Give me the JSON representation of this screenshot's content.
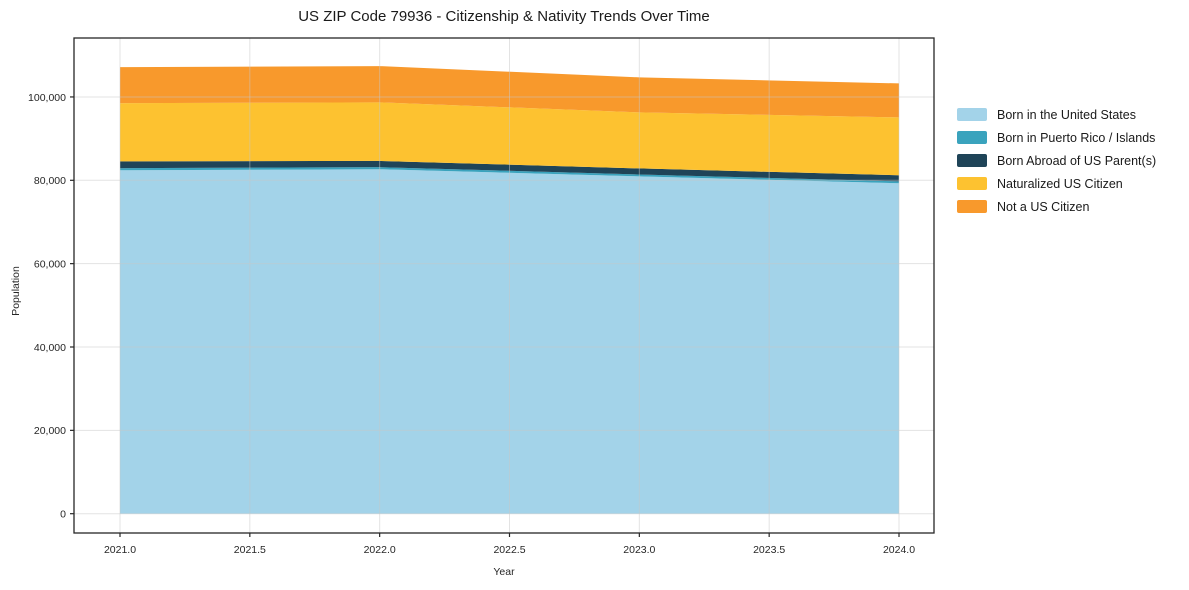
{
  "chart_data": {
    "type": "area",
    "stacked": true,
    "title": "US ZIP Code 79936 - Citizenship & Nativity Trends Over Time",
    "xlabel": "Year",
    "ylabel": "Population",
    "grid": true,
    "legend_position": "right-outside",
    "background_color": "#ffffff",
    "x": [
      2021,
      2022,
      2023,
      2024
    ],
    "x_tick_values": [
      2021.0,
      2021.5,
      2022.0,
      2022.5,
      2023.0,
      2023.5,
      2024.0
    ],
    "x_tick_labels": [
      "2021.0",
      "2021.5",
      "2022.0",
      "2022.5",
      "2023.0",
      "2023.5",
      "2024.0"
    ],
    "y_tick_values": [
      0,
      20000,
      40000,
      60000,
      80000,
      100000
    ],
    "y_tick_labels": [
      "0",
      "20,000",
      "40,000",
      "60,000",
      "80,000",
      "100,000"
    ],
    "xlim": [
      2020.85,
      2024.15
    ],
    "ylim": [
      -5000,
      114000
    ],
    "series": [
      {
        "name": "Born in the United States",
        "color": "#a3d3e9",
        "values": [
          82400,
          82650,
          80950,
          79300
        ]
      },
      {
        "name": "Born in Puerto Rico / Islands",
        "color": "#3aa3bd",
        "values": [
          500,
          500,
          450,
          450
        ]
      },
      {
        "name": "Born Abroad of US Parent(s)",
        "color": "#1f4458",
        "values": [
          1650,
          1500,
          1450,
          1450
        ]
      },
      {
        "name": "Naturalized US Citizen",
        "color": "#fdc230",
        "values": [
          13950,
          14050,
          13450,
          13900
        ]
      },
      {
        "name": "Not a US Citizen",
        "color": "#f8992c",
        "values": [
          8650,
          8700,
          8400,
          8150
        ]
      }
    ],
    "stacked_totals": [
      107150,
      107400,
      104700,
      103250
    ]
  }
}
